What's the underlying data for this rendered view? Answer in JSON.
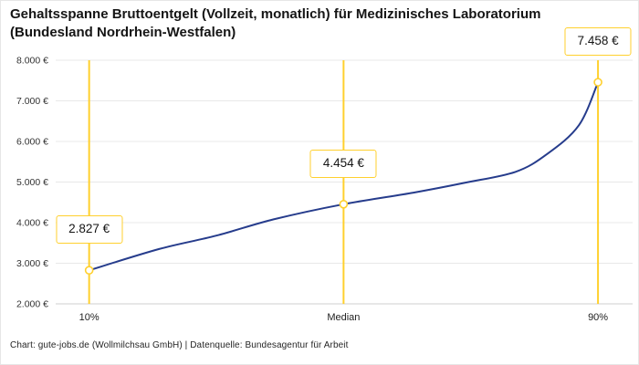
{
  "title": {
    "lines": [
      "Gehaltsspanne Bruttoentgelt (Vollzeit, monatlich) für Medizinisches Laboratorium",
      "(Bundesland Nordrhein-Westfalen)"
    ]
  },
  "footer": {
    "caption": "Chart: gute-jobs.de (Wollmilchsau GmbH) | Datenquelle: Bundesagentur für Arbeit"
  },
  "colors": {
    "accent_yellow": "#FFD02E",
    "line_navy": "#263C8C",
    "grid": "#E8E8E8",
    "axis": "#CFCFCF",
    "text_dark": "#222222",
    "text_muted": "#333333"
  },
  "chart_data": {
    "type": "line",
    "title": "Gehaltsspanne Bruttoentgelt (Vollzeit, monatlich) für Medizinisches Laboratorium (Bundesland Nordrhein-Westfalen)",
    "xlabel": "",
    "ylabel": "",
    "grid": "horizontal",
    "legend": "none",
    "ylim": [
      2000,
      8000
    ],
    "yticks": [
      {
        "value": 2000,
        "label": "2.000 €"
      },
      {
        "value": 3000,
        "label": "3.000 €"
      },
      {
        "value": 4000,
        "label": "4.000 €"
      },
      {
        "value": 5000,
        "label": "5.000 €"
      },
      {
        "value": 6000,
        "label": "6.000 €"
      },
      {
        "value": 7000,
        "label": "7.000 €"
      },
      {
        "value": 8000,
        "label": "8.000 €"
      }
    ],
    "categories": [
      "10%",
      "Median",
      "90%"
    ],
    "points": [
      {
        "id": "p10",
        "category": "10%",
        "percentile": 10,
        "value": 2827,
        "value_label": "2.827 €"
      },
      {
        "id": "median",
        "category": "Median",
        "percentile": 50,
        "value": 4454,
        "value_label": "4.454 €"
      },
      {
        "id": "p90",
        "category": "90%",
        "percentile": 90,
        "value": 7458,
        "value_label": "7.458 €"
      }
    ],
    "curve_samples_estimated": [
      [
        10,
        2827
      ],
      [
        21,
        3350
      ],
      [
        30,
        3680
      ],
      [
        39,
        4080
      ],
      [
        50,
        4454
      ],
      [
        61,
        4740
      ],
      [
        69,
        4980
      ],
      [
        77,
        5250
      ],
      [
        82,
        5690
      ],
      [
        87,
        6400
      ],
      [
        90,
        7458
      ]
    ]
  }
}
